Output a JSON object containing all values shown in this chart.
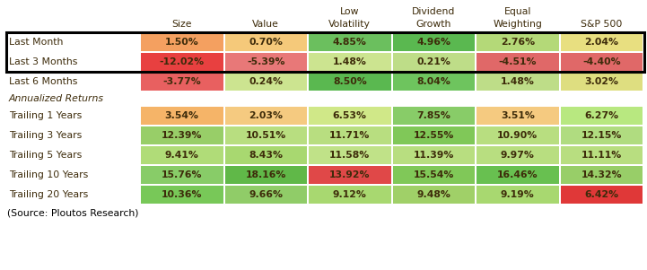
{
  "col_headers_line1": [
    "",
    "",
    "Low",
    "Dividend",
    "Equal",
    ""
  ],
  "col_headers_line2": [
    "Size",
    "Value",
    "Volatility",
    "Growth",
    "Weighting",
    "S&P 500"
  ],
  "display_rows": [
    "Last Month",
    "Last 3 Months",
    "Last 6 Months",
    "ITALIC:Annualized Returns",
    "Trailing 1 Years",
    "Trailing 3 Years",
    "Trailing 5 Years",
    "Trailing 10 Years",
    "Trailing 20 Years"
  ],
  "data": {
    "Last Month": [
      "1.50%",
      "0.70%",
      "4.85%",
      "4.96%",
      "2.76%",
      "2.04%"
    ],
    "Last 3 Months": [
      "-12.02%",
      "-5.39%",
      "1.48%",
      "0.21%",
      "-4.51%",
      "-4.40%"
    ],
    "Last 6 Months": [
      "-3.77%",
      "0.24%",
      "8.50%",
      "8.04%",
      "1.48%",
      "3.02%"
    ],
    "Trailing 1 Years": [
      "3.54%",
      "2.03%",
      "6.53%",
      "7.85%",
      "3.51%",
      "6.27%"
    ],
    "Trailing 3 Years": [
      "12.39%",
      "10.51%",
      "11.71%",
      "12.55%",
      "10.90%",
      "12.15%"
    ],
    "Trailing 5 Years": [
      "9.41%",
      "8.43%",
      "11.58%",
      "11.39%",
      "9.97%",
      "11.11%"
    ],
    "Trailing 10 Years": [
      "15.76%",
      "18.16%",
      "13.92%",
      "15.54%",
      "16.46%",
      "14.32%"
    ],
    "Trailing 20 Years": [
      "10.36%",
      "9.66%",
      "9.12%",
      "9.48%",
      "9.19%",
      "6.42%"
    ]
  },
  "colors": {
    "Last Month": [
      "#f4a060",
      "#f5c97a",
      "#6bbf5e",
      "#5ab850",
      "#b4d978",
      "#e8df80"
    ],
    "Last 3 Months": [
      "#e84040",
      "#e87878",
      "#cce490",
      "#bedd88",
      "#e06868",
      "#e06868"
    ],
    "Last 6 Months": [
      "#e86060",
      "#cce490",
      "#5ab850",
      "#6ec45e",
      "#bedd88",
      "#dede80"
    ],
    "Trailing 1 Years": [
      "#f5b468",
      "#f5ca80",
      "#d0e888",
      "#88cc68",
      "#f5ca80",
      "#b8e880"
    ],
    "Trailing 3 Years": [
      "#98ce68",
      "#b8de80",
      "#b8de80",
      "#80c858",
      "#b8de80",
      "#b0dc80"
    ],
    "Trailing 5 Years": [
      "#b0dc78",
      "#a8d870",
      "#c0e288",
      "#b8de80",
      "#b8de80",
      "#b8de80"
    ],
    "Trailing 10 Years": [
      "#88cc68",
      "#60b848",
      "#e04848",
      "#80c858",
      "#68c050",
      "#98ce68"
    ],
    "Trailing 20 Years": [
      "#78c858",
      "#90cc68",
      "#a8d870",
      "#a0d068",
      "#a8d870",
      "#e03838"
    ]
  },
  "boxed_rows": [
    "Last Month",
    "Last 3 Months"
  ],
  "source_text": "(Source: Ploutos Research)",
  "background_color": "#ffffff",
  "text_color": "#3d2b0a",
  "header_color": "#3d2b0a"
}
